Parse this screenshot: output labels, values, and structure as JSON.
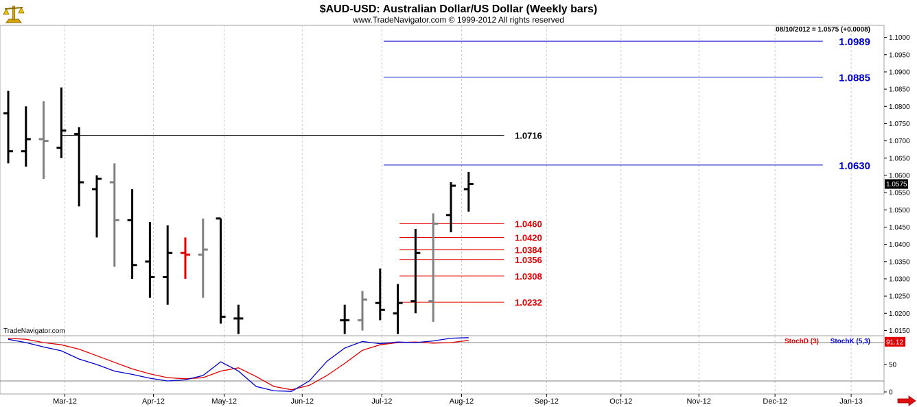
{
  "header": {
    "title": "$AUD-USD:  Australian Dollar/US Dollar  (Weekly bars)",
    "subtitle": "www.TradeNavigator.com © 1999-2012 All rights reserved",
    "last_quote": "08/10/2012 = 1.0575 (+0.0008)",
    "watermark": "TradeNavigator.com",
    "logo_icon": "scales-icon",
    "arrow_icon": "right-arrow-icon"
  },
  "chart_data": [
    {
      "type": "ohlc",
      "title": "$AUD-USD:  Australian Dollar/US Dollar  (Weekly bars)",
      "ylim": [
        1.0135,
        1.1035
      ],
      "y_ticks": [
        "1.1000",
        "1.0950",
        "1.0900",
        "1.0850",
        "1.0800",
        "1.0750",
        "1.0700",
        "1.0650",
        "1.0600",
        "1.0550",
        "1.0500",
        "1.0450",
        "1.0400",
        "1.0350",
        "1.0300",
        "1.0250",
        "1.0200",
        "1.0150"
      ],
      "x_ticks": [
        {
          "label": "Mar-12",
          "week": 3.2
        },
        {
          "label": "Apr-12",
          "week": 8.2
        },
        {
          "label": "May-12",
          "week": 12.2
        },
        {
          "label": "Jun-12",
          "week": 16.6
        },
        {
          "label": "Jul-12",
          "week": 21.1
        },
        {
          "label": "Aug-12",
          "week": 25.6
        },
        {
          "label": "Sep-12",
          "week": 30.4
        },
        {
          "label": "Oct-12",
          "week": 34.6
        },
        {
          "label": "Nov-12",
          "week": 39.0
        },
        {
          "label": "Dec-12",
          "week": 43.3
        },
        {
          "label": "Jan-13",
          "week": 47.6
        }
      ],
      "last_price": "1.0575",
      "bars": [
        {
          "w": 0,
          "o": 1.078,
          "h": 1.0845,
          "l": 1.0635,
          "c": 1.067,
          "color": "#000000"
        },
        {
          "w": 1,
          "o": 1.067,
          "h": 1.08,
          "l": 1.0625,
          "c": 1.0705,
          "color": "#000000"
        },
        {
          "w": 2,
          "o": 1.0705,
          "h": 1.0815,
          "l": 1.059,
          "c": 1.07,
          "color": "#808080"
        },
        {
          "w": 3,
          "o": 1.068,
          "h": 1.0855,
          "l": 1.065,
          "c": 1.073,
          "color": "#000000"
        },
        {
          "w": 4,
          "o": 1.072,
          "h": 1.074,
          "l": 1.051,
          "c": 1.058,
          "color": "#000000"
        },
        {
          "w": 5,
          "o": 1.056,
          "h": 1.06,
          "l": 1.042,
          "c": 1.059,
          "color": "#000000"
        },
        {
          "w": 6,
          "o": 1.058,
          "h": 1.0635,
          "l": 1.0335,
          "c": 1.047,
          "color": "#808080"
        },
        {
          "w": 7,
          "o": 1.047,
          "h": 1.056,
          "l": 1.03,
          "c": 1.034,
          "color": "#000000"
        },
        {
          "w": 8,
          "o": 1.035,
          "h": 1.0465,
          "l": 1.0245,
          "c": 1.0305,
          "color": "#000000"
        },
        {
          "w": 9,
          "o": 1.0305,
          "h": 1.0455,
          "l": 1.0225,
          "c": 1.0375,
          "color": "#000000"
        },
        {
          "w": 10,
          "o": 1.0375,
          "h": 1.042,
          "l": 1.03,
          "c": 1.037,
          "color": "#e00000"
        },
        {
          "w": 11,
          "o": 1.037,
          "h": 1.0475,
          "l": 1.0245,
          "c": 1.0385,
          "color": "#808080"
        },
        {
          "w": 12,
          "o": 1.0475,
          "h": 1.0475,
          "l": 1.017,
          "c": 1.019,
          "color": "#000000"
        },
        {
          "w": 13,
          "o": 1.0185,
          "h": 1.0225,
          "l": 1.014,
          "c": 1.0185,
          "color": "#000000"
        },
        {
          "w": 19,
          "o": 1.018,
          "h": 1.0225,
          "l": 1.014,
          "c": 1.018,
          "color": "#000000"
        },
        {
          "w": 20,
          "o": 1.018,
          "h": 1.0265,
          "l": 1.015,
          "c": 1.024,
          "color": "#808080"
        },
        {
          "w": 21,
          "o": 1.023,
          "h": 1.033,
          "l": 1.018,
          "c": 1.021,
          "color": "#000000"
        },
        {
          "w": 22,
          "o": 1.02,
          "h": 1.0285,
          "l": 1.014,
          "c": 1.023,
          "color": "#000000"
        },
        {
          "w": 23,
          "o": 1.0235,
          "h": 1.0445,
          "l": 1.02,
          "c": 1.0375,
          "color": "#000000"
        },
        {
          "w": 24,
          "o": 1.0235,
          "h": 1.049,
          "l": 1.0175,
          "c": 1.046,
          "color": "#808080"
        },
        {
          "w": 25,
          "o": 1.0485,
          "h": 1.058,
          "l": 1.0435,
          "c": 1.057,
          "color": "#000000"
        },
        {
          "w": 26,
          "o": 1.056,
          "h": 1.061,
          "l": 1.0495,
          "c": 1.0575,
          "color": "#000000"
        }
      ],
      "levels": [
        {
          "value": 1.0989,
          "label": "1.0989",
          "color": "#0000cc",
          "w_start": 21.2,
          "w_end": 46.0,
          "label_pos": "right"
        },
        {
          "value": 1.0885,
          "label": "1.0885",
          "color": "#0000cc",
          "w_start": 21.2,
          "w_end": 46.0,
          "label_pos": "right"
        },
        {
          "value": 1.0716,
          "label": "1.0716",
          "color": "#000000",
          "w_start": 3.0,
          "w_end": 28.0,
          "label_pos": "mid"
        },
        {
          "value": 1.063,
          "label": "1.0630",
          "color": "#0000cc",
          "w_start": 21.2,
          "w_end": 46.0,
          "label_pos": "right"
        },
        {
          "value": 1.046,
          "label": "1.0460",
          "color": "#e00000",
          "w_start": 22.1,
          "w_end": 28.0,
          "label_pos": "mid"
        },
        {
          "value": 1.042,
          "label": "1.0420",
          "color": "#e00000",
          "w_start": 22.1,
          "w_end": 28.0,
          "label_pos": "mid"
        },
        {
          "value": 1.0384,
          "label": "1.0384",
          "color": "#e00000",
          "w_start": 22.1,
          "w_end": 28.0,
          "label_pos": "mid"
        },
        {
          "value": 1.0356,
          "label": "1.0356",
          "color": "#e00000",
          "w_start": 22.1,
          "w_end": 28.0,
          "label_pos": "mid"
        },
        {
          "value": 1.0308,
          "label": "1.0308",
          "color": "#e00000",
          "w_start": 22.1,
          "w_end": 28.0,
          "label_pos": "mid"
        },
        {
          "value": 1.0232,
          "label": "1.0232",
          "color": "#e00000",
          "w_start": 22.1,
          "w_end": 28.0,
          "label_pos": "mid"
        }
      ]
    },
    {
      "type": "line",
      "ylim": [
        0,
        100
      ],
      "y_ticks": [
        "50",
        "0"
      ],
      "ref_lines": [
        90,
        20
      ],
      "last_value_label": "91.12",
      "legend": [
        {
          "name": "StochD (3)",
          "color": "#e00000"
        },
        {
          "name": "StochK (5,3)",
          "color": "#0000cc"
        }
      ],
      "series": [
        {
          "name": "StochD (3)",
          "color": "#e00000",
          "x": [
            0,
            1,
            2,
            3,
            4,
            5,
            6,
            7,
            8,
            9,
            10,
            11,
            12,
            13,
            14,
            15,
            16,
            17,
            18,
            19,
            20,
            21,
            22,
            23,
            24,
            25,
            26
          ],
          "values": [
            98,
            96,
            90,
            86,
            78,
            66,
            54,
            42,
            33,
            26,
            24,
            26,
            38,
            44,
            28,
            10,
            4,
            12,
            30,
            52,
            76,
            86,
            90,
            91,
            89,
            90,
            94
          ]
        },
        {
          "name": "StochK (5,3)",
          "color": "#0000cc",
          "x": [
            0,
            1,
            2,
            3,
            4,
            5,
            6,
            7,
            8,
            9,
            10,
            11,
            12,
            13,
            14,
            15,
            16,
            17,
            18,
            19,
            20,
            21,
            22,
            23,
            24,
            25,
            26
          ],
          "values": [
            96,
            90,
            82,
            75,
            60,
            50,
            38,
            32,
            25,
            20,
            22,
            30,
            55,
            38,
            10,
            2,
            1,
            20,
            56,
            80,
            92,
            88,
            91,
            90,
            93,
            98,
            99
          ]
        }
      ]
    }
  ]
}
